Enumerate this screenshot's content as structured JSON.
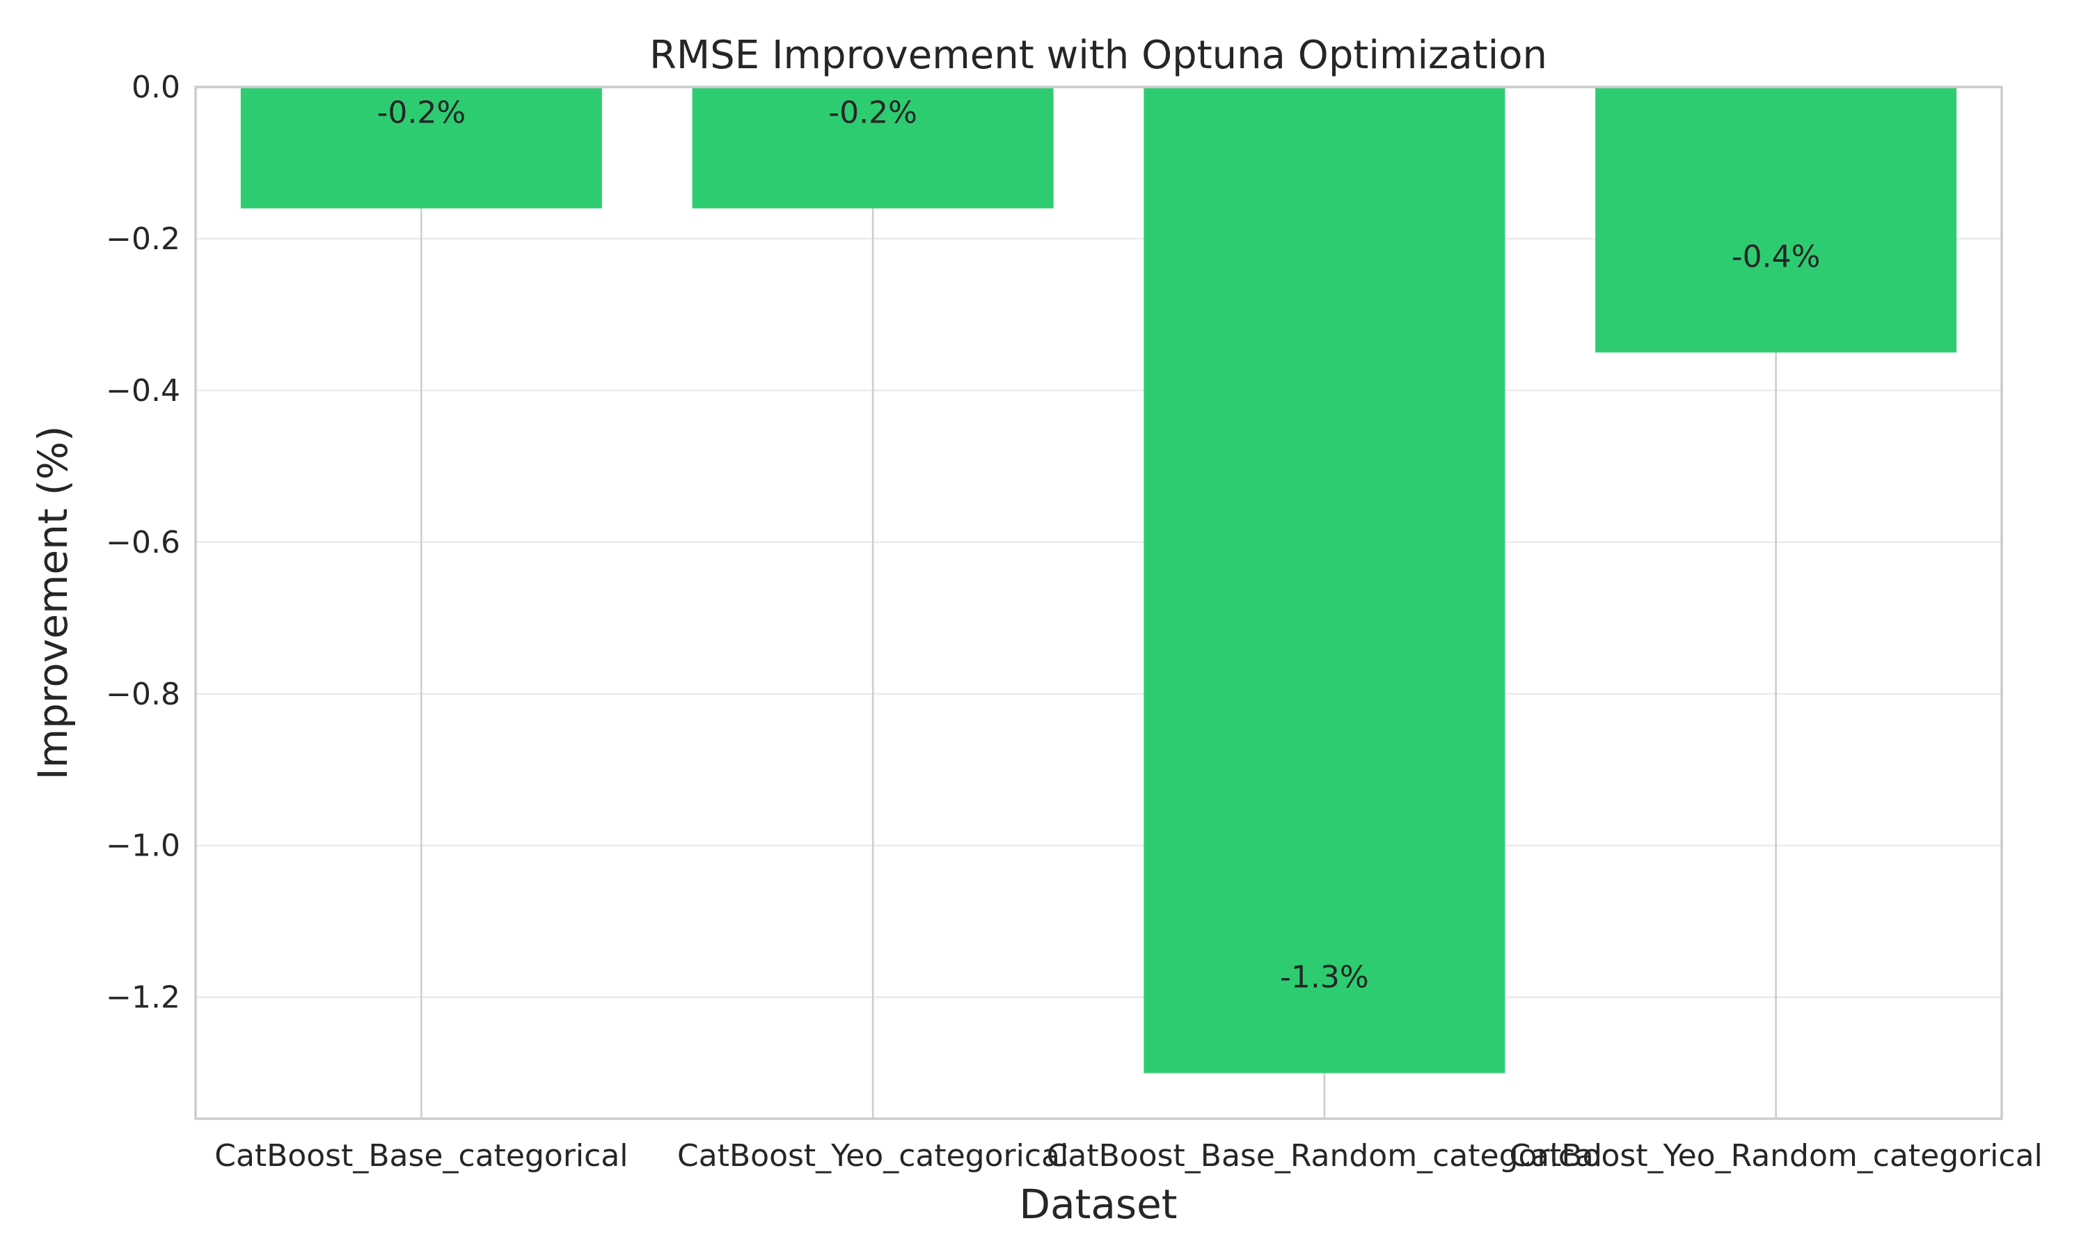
{
  "chart_data": {
    "type": "bar",
    "title": "RMSE Improvement with Optuna Optimization",
    "xlabel": "Dataset",
    "ylabel": "Improvement (%)",
    "categories": [
      "CatBoost_Base_categorical",
      "CatBoost_Yeo_categorical",
      "CatBoost_Base_Random_categorical",
      "CatBoost_Yeo_Random_categorical"
    ],
    "values": [
      -0.16,
      -0.16,
      -1.3,
      -0.35
    ],
    "data_labels": [
      "-0.2%",
      "-0.2%",
      "-1.3%",
      "-0.4%"
    ],
    "ylim": [
      -1.36,
      0.0
    ],
    "yticks": [
      0.0,
      -0.2,
      -0.4,
      -0.6,
      -0.8,
      -1.0,
      -1.2
    ],
    "ytick_labels": [
      "0.0",
      "−0.2",
      "−0.4",
      "−0.6",
      "−0.8",
      "−1.0",
      "−1.2"
    ],
    "grid": "horizontal",
    "bar_color": "#2ecc71",
    "legend": "none"
  }
}
